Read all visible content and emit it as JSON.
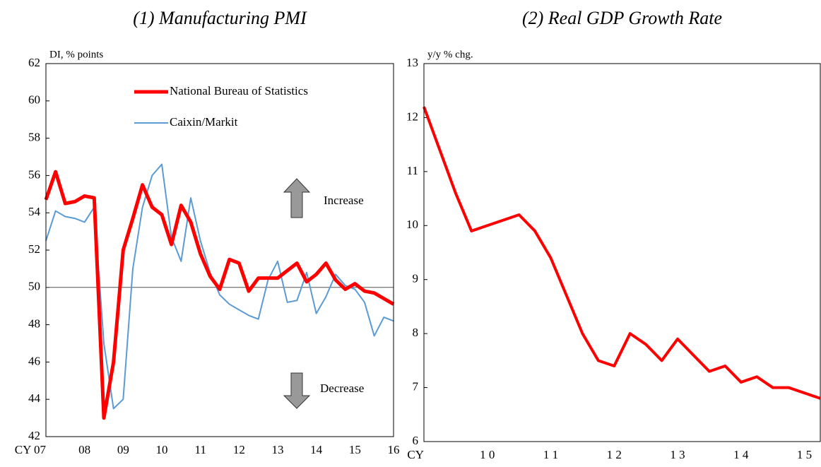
{
  "chart_data": [
    {
      "type": "line",
      "title": "(1) Manufacturing PMI",
      "ylabel": "DI, % points",
      "categories": [
        "CY 07",
        null,
        null,
        null,
        "08",
        null,
        null,
        null,
        "09",
        null,
        null,
        null,
        "10",
        null,
        null,
        null,
        "11",
        null,
        null,
        null,
        "12",
        null,
        null,
        null,
        "13",
        null,
        null,
        null,
        "14",
        null,
        null,
        null,
        "15",
        null,
        null,
        null,
        "16"
      ],
      "series": [
        {
          "name": "National Bureau of Statistics",
          "color": "#ff0000",
          "width": 5,
          "values": [
            54.7,
            56.2,
            54.5,
            54.6,
            54.9,
            54.8,
            43.0,
            46.0,
            52.0,
            53.7,
            55.5,
            54.3,
            53.9,
            52.3,
            54.4,
            53.5,
            51.8,
            50.6,
            49.9,
            51.5,
            51.3,
            49.8,
            50.5,
            50.5,
            50.5,
            50.9,
            51.3,
            50.3,
            50.7,
            51.3,
            50.4,
            49.9,
            50.2,
            49.8,
            49.7,
            49.4,
            49.1
          ]
        },
        {
          "name": "Caixin/Markit",
          "color": "#5b9bd5",
          "width": 2,
          "values": [
            52.5,
            54.1,
            53.8,
            53.7,
            53.5,
            54.3,
            47.0,
            43.5,
            44.0,
            51.0,
            54.3,
            56.0,
            56.6,
            52.7,
            51.4,
            54.8,
            52.5,
            50.8,
            49.6,
            49.1,
            48.8,
            48.5,
            48.3,
            50.4,
            51.4,
            49.2,
            49.3,
            50.8,
            48.6,
            49.5,
            50.7,
            50.1,
            49.9,
            49.2,
            47.4,
            48.4,
            48.2
          ]
        }
      ],
      "ylim": [
        42,
        62
      ],
      "yticks": [
        42,
        44,
        46,
        48,
        50,
        52,
        54,
        56,
        58,
        60,
        62
      ],
      "hline": 50,
      "annotations": [
        "Increase",
        "Decrease"
      ]
    },
    {
      "type": "line",
      "title": "(2) Real GDP Growth Rate",
      "ylabel": "y/y  % chg.",
      "categories": [
        "CY",
        null,
        null,
        null,
        "1 0",
        null,
        null,
        null,
        "1 1",
        null,
        null,
        null,
        "1 2",
        null,
        null,
        null,
        "1 3",
        null,
        null,
        null,
        "1 4",
        null,
        null,
        null,
        "1 5",
        null
      ],
      "series": [
        {
          "color": "#ff0000",
          "width": 4,
          "values": [
            12.2,
            11.4,
            10.6,
            9.9,
            10.0,
            10.1,
            10.2,
            9.9,
            9.4,
            8.7,
            8.0,
            7.5,
            7.4,
            8.0,
            7.8,
            7.5,
            7.9,
            7.6,
            7.3,
            7.4,
            7.1,
            7.2,
            7.0,
            7.0,
            6.9,
            6.8
          ]
        }
      ],
      "ylim": [
        6,
        13
      ],
      "yticks": [
        6,
        7,
        8,
        9,
        10,
        11,
        12,
        13
      ]
    }
  ]
}
